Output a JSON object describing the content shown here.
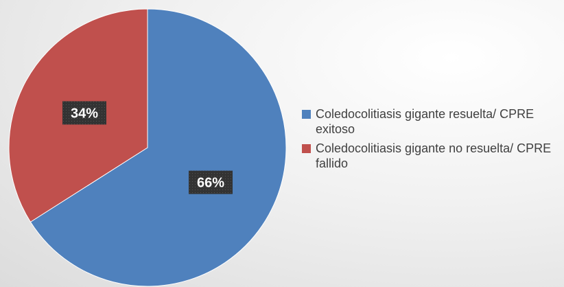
{
  "chart_data": {
    "type": "pie",
    "categories": [
      "Coledocolitiasis gigante resuelta/ CPRE exitoso",
      "Coledocolitiasis gigante no resuelta/ CPRE fallido"
    ],
    "values": [
      66,
      34
    ],
    "value_labels": [
      "66%",
      "34%"
    ],
    "colors": [
      "#4f81bd",
      "#c0504d"
    ],
    "legend": "right"
  }
}
